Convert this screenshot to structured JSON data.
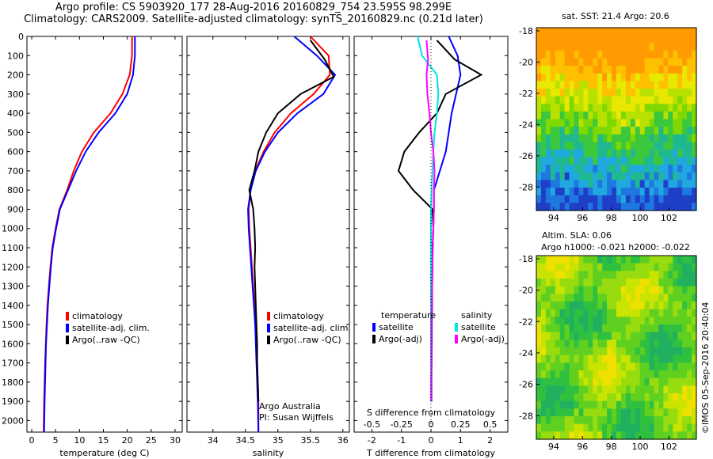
{
  "header": {
    "line1": "Argo profile: CS 5903920_177 28-Aug-2016 20160829_754 23.595S 98.299E",
    "line2": "Climatology: CARS2009. Satellite-adjusted climatology: synTS_20160829.nc (0.21d later)"
  },
  "colors": {
    "climatology": "#ff0000",
    "satellite": "#0000ff",
    "argo": "#000000",
    "sal_satellite": "#00e5e5",
    "sal_argo": "#ff00ff"
  },
  "depth_ticks": [
    "0",
    "100",
    "200",
    "300",
    "400",
    "500",
    "600",
    "700",
    "800",
    "900",
    "1000",
    "1100",
    "1200",
    "1300",
    "1400",
    "1500",
    "1600",
    "1700",
    "1800",
    "1900",
    "2000"
  ],
  "chart_data": [
    {
      "type": "line",
      "xlabel": "temperature (deg C)",
      "ylim": [
        0,
        2060
      ],
      "xlim": [
        -1,
        31.5
      ],
      "xticks": [
        "0",
        "5",
        "10",
        "15",
        "20",
        "25",
        "30"
      ],
      "legend": [
        "climatology",
        "satellite-adj. clim.",
        "Argo(..raw -QC)"
      ],
      "series": [
        {
          "name": "climatology",
          "color": "#ff0000",
          "x": [
            21.0,
            21.0,
            20.5,
            19,
            16.5,
            13,
            10.5,
            8.8,
            7.4,
            5.8,
            5.0,
            4.3,
            3.9,
            3.6,
            3.3,
            3.1,
            2.95,
            2.8,
            2.7,
            2.6,
            2.5
          ],
          "y": [
            0,
            100,
            200,
            300,
            400,
            500,
            600,
            700,
            800,
            900,
            1000,
            1100,
            1200,
            1300,
            1400,
            1500,
            1600,
            1700,
            1800,
            1900,
            2060
          ]
        },
        {
          "name": "satellite-adj. clim.",
          "color": "#0000ff",
          "x": [
            21.6,
            21.6,
            21.2,
            20,
            17.5,
            14,
            11.3,
            9.3,
            7.6,
            5.9,
            5.1,
            4.4,
            4.0,
            3.7,
            3.4,
            3.2,
            3.0,
            2.9,
            2.8,
            2.7,
            2.6
          ],
          "y": [
            0,
            100,
            200,
            300,
            400,
            500,
            600,
            700,
            800,
            900,
            1000,
            1100,
            1200,
            1300,
            1400,
            1500,
            1600,
            1700,
            1800,
            1900,
            2060
          ]
        }
      ]
    },
    {
      "type": "line",
      "xlabel": "salinity",
      "ylim": [
        0,
        2060
      ],
      "xlim": [
        33.6,
        36.1
      ],
      "xticks": [
        "34",
        "34.5",
        "35",
        "35.5",
        "36"
      ],
      "legend": [
        "climatology",
        "satellite-adj. clim.",
        "Argo(..raw -QC)"
      ],
      "annotation": [
        "Argo Australia",
        "PI: Susan Wijffels"
      ],
      "series": [
        {
          "name": "climatology",
          "color": "#ff0000",
          "x": [
            35.5,
            35.78,
            35.8,
            35.55,
            35.2,
            34.95,
            34.78,
            34.65,
            34.58,
            34.55,
            34.56,
            34.58,
            34.6,
            34.62,
            34.64,
            34.66,
            34.67,
            34.68,
            34.69,
            34.7,
            34.7
          ],
          "y": [
            0,
            100,
            200,
            300,
            400,
            500,
            600,
            700,
            800,
            900,
            1000,
            1100,
            1200,
            1300,
            1400,
            1500,
            1600,
            1700,
            1800,
            1900,
            2060
          ]
        },
        {
          "name": "satellite-adj. clim.",
          "color": "#0000ff",
          "x": [
            35.25,
            35.6,
            35.88,
            35.7,
            35.3,
            35.0,
            34.8,
            34.66,
            34.58,
            34.54,
            34.55,
            34.57,
            34.59,
            34.61,
            34.63,
            34.65,
            34.66,
            34.67,
            34.68,
            34.69,
            34.7
          ],
          "y": [
            0,
            100,
            200,
            300,
            400,
            500,
            600,
            700,
            800,
            900,
            1000,
            1100,
            1200,
            1300,
            1400,
            1500,
            1600,
            1700,
            1800,
            1900,
            2060
          ]
        },
        {
          "name": "Argo(..raw -QC)",
          "color": "#000000",
          "x": [
            35.5,
            35.72,
            35.86,
            35.35,
            35.0,
            34.82,
            34.7,
            34.64,
            34.56,
            34.62,
            34.64,
            34.65,
            34.64,
            34.65,
            34.66,
            34.67,
            34.68,
            34.68,
            34.69,
            34.7
          ],
          "y": [
            20,
            120,
            210,
            300,
            400,
            500,
            600,
            700,
            800,
            900,
            1000,
            1100,
            1200,
            1300,
            1400,
            1500,
            1600,
            1700,
            1800,
            1900
          ]
        }
      ]
    },
    {
      "type": "line",
      "xlabel": "T difference from climatology",
      "xlabel_top": "S difference from climatology",
      "ylim": [
        0,
        2060
      ],
      "xlim": [
        -2.6,
        2.6
      ],
      "xticks": [
        "-2",
        "-1",
        "0",
        "1",
        "2"
      ],
      "xticks_top": [
        "-0.5",
        "-0.25",
        "0",
        "0.25",
        "0.5"
      ],
      "legend": {
        "temperature": [
          "satellite",
          "Argo(-adj)"
        ],
        "salinity": [
          "satellite",
          "Argo(-adj)"
        ],
        "titles": [
          "temperature",
          "salinity"
        ]
      },
      "series": [
        {
          "name": "T satellite",
          "color": "#0000ff",
          "x": [
            0.6,
            0.9,
            1.0,
            0.85,
            0.7,
            0.6,
            0.5,
            0.3,
            0.1,
            0.1,
            0.08,
            0.06,
            0.05,
            0.04,
            0.04,
            0.03,
            0.03,
            0.02,
            0.02,
            0.02
          ],
          "y": [
            0,
            100,
            200,
            300,
            400,
            500,
            600,
            700,
            800,
            900,
            1000,
            1100,
            1200,
            1300,
            1400,
            1500,
            1600,
            1700,
            1800,
            1900
          ]
        },
        {
          "name": "T Argo(-adj)",
          "color": "#000000",
          "x": [
            0.2,
            0.8,
            1.7,
            0.5,
            0.2,
            -0.4,
            -0.9,
            -1.1,
            -0.6,
            0.05,
            0.08,
            0.05,
            0.04,
            0.03,
            0.03,
            0.02,
            0.02,
            0.02,
            0.01,
            0.01
          ],
          "y": [
            20,
            120,
            200,
            300,
            400,
            500,
            600,
            700,
            800,
            900,
            1000,
            1100,
            1200,
            1300,
            1400,
            1500,
            1600,
            1700,
            1800,
            1900
          ]
        },
        {
          "name": "S satellite",
          "color": "#00e5e5",
          "x": [
            -0.45,
            -0.3,
            0.2,
            0.25,
            0.2,
            0.12,
            0.08,
            0.05,
            0.02,
            0.0,
            0.0,
            0.0,
            0.0,
            0.0,
            0.0,
            0.0,
            0.0,
            0.0,
            0.0,
            0.0
          ],
          "y": [
            0,
            100,
            200,
            300,
            400,
            500,
            600,
            700,
            800,
            900,
            1000,
            1100,
            1200,
            1300,
            1400,
            1500,
            1600,
            1700,
            1800,
            1900
          ]
        },
        {
          "name": "S Argo(-adj)",
          "color": "#ff00ff",
          "x": [
            -0.15,
            -0.1,
            -0.15,
            -0.12,
            -0.05,
            0.0,
            0.08,
            0.12,
            0.1,
            0.1,
            0.08,
            0.06,
            0.05,
            0.04,
            0.03,
            0.02,
            0.02,
            0.02,
            0.01,
            0.01
          ],
          "y": [
            20,
            120,
            200,
            300,
            400,
            500,
            600,
            700,
            800,
            900,
            1000,
            1100,
            1200,
            1300,
            1400,
            1500,
            1600,
            1700,
            1800,
            1900
          ]
        }
      ]
    },
    {
      "type": "heatmap",
      "title": "sat. SST: 21.4  Argo: 20.6",
      "xlim": [
        92.8,
        103.9
      ],
      "ylim": [
        -29.5,
        -17.8
      ],
      "xticks": [
        "94",
        "96",
        "98",
        "100",
        "102"
      ],
      "yticks": [
        "-18",
        "-20",
        "-22",
        "-24",
        "-26",
        "-28"
      ]
    },
    {
      "type": "heatmap",
      "title": "Altim. SLA: 0.06",
      "subtitle": "Argo h1000: -0.021  h2000: -0.022",
      "xlim": [
        92.8,
        103.9
      ],
      "ylim": [
        -29.5,
        -17.8
      ],
      "xticks": [
        "94",
        "96",
        "98",
        "100",
        "102"
      ],
      "yticks": [
        "-18",
        "-20",
        "-22",
        "-24",
        "-26",
        "-28"
      ]
    }
  ],
  "footer_credit": "©IMOS 05-Sep-2016 20:40:04"
}
